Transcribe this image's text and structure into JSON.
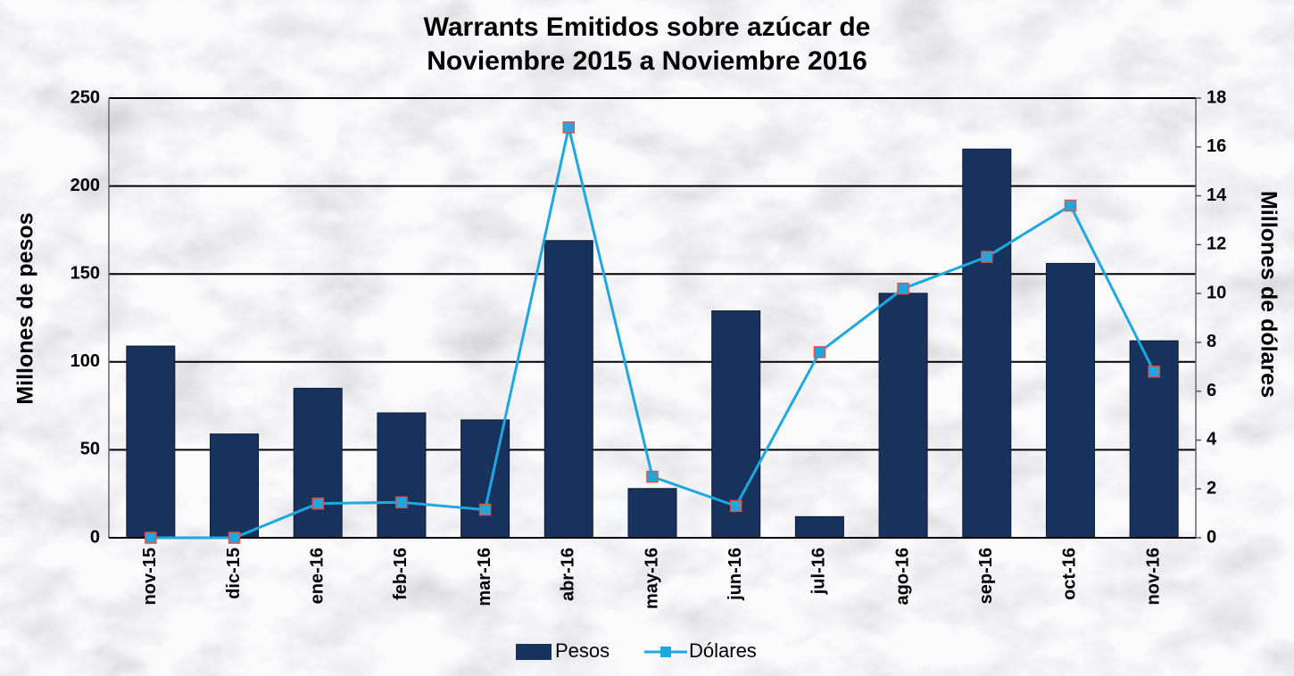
{
  "chart_data": {
    "type": "bar_line",
    "title": [
      "Warrants Emitidos sobre azúcar de",
      "Noviembre 2015 a Noviembre 2016"
    ],
    "ylabel": "Millones de pesos",
    "y2label": "Millones de dólares",
    "categories": [
      "nov-15",
      "dic-15",
      "ene-16",
      "feb-16",
      "mar-16",
      "abr-16",
      "may-16",
      "jun-16",
      "jul-16",
      "ago-16",
      "sep-16",
      "oct-16",
      "nov-16"
    ],
    "series": [
      {
        "name": "Pesos",
        "type": "bar",
        "color": "#17325c",
        "values": [
          109,
          59,
          85,
          71,
          67,
          169,
          28,
          129,
          12,
          139,
          221,
          156,
          112
        ]
      },
      {
        "name": "Dólares",
        "type": "line",
        "axis": "y2",
        "color": "#1ea7e1",
        "marker_edge": "#d9534f",
        "values": [
          0,
          0,
          1.4,
          1.45,
          1.15,
          16.8,
          2.5,
          1.3,
          7.6,
          10.2,
          11.5,
          13.6,
          6.8
        ]
      }
    ],
    "ylim": [
      0,
      250
    ],
    "yticks": [
      0,
      50,
      100,
      150,
      200,
      250
    ],
    "y2lim": [
      0,
      18
    ],
    "y2ticks": [
      0,
      2,
      4,
      6,
      8,
      10,
      12,
      14,
      16,
      18
    ],
    "grid": true,
    "legend": "bottom"
  }
}
